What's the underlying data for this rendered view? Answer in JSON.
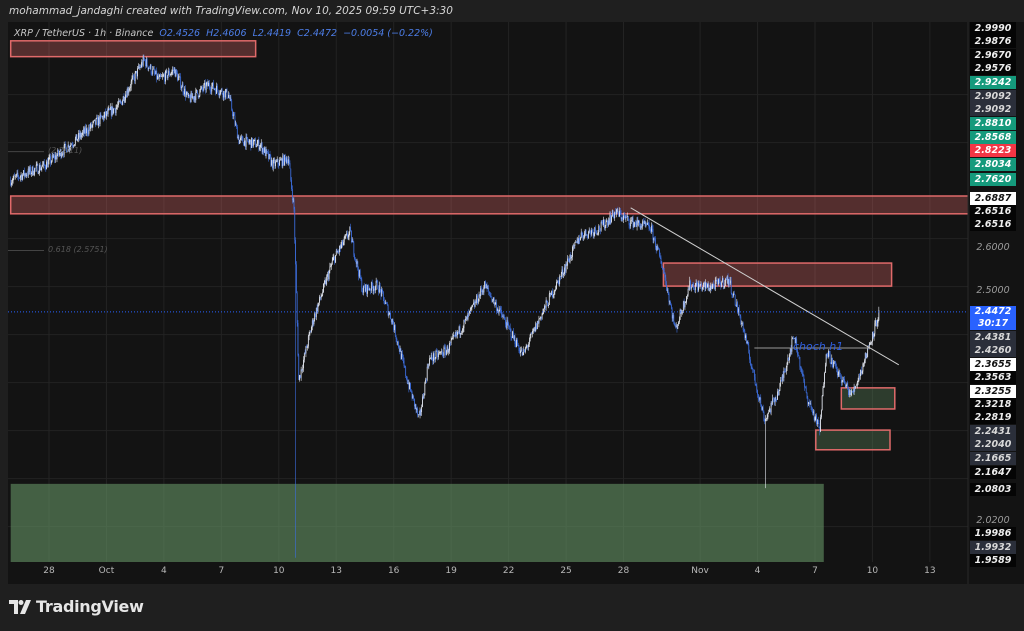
{
  "credit": "mohammad_jandaghi created with TradingView.com, Nov 10, 2025 09:59 UTC+3:30",
  "legend": {
    "symbol": "XRP / TetherUS · 1h · Binance",
    "open": "O2.4526",
    "high": "H2.4606",
    "low": "L2.4419",
    "close": "C2.4472",
    "change": "−0.0054 (−0.22%)"
  },
  "logo": {
    "text": "TradingView"
  },
  "colors": {
    "up": "#e8ecf5",
    "down": "#3d6fe0",
    "supply_zone": "#e06a6a",
    "demand_zone": "#5f8a5f",
    "grid": "#232323",
    "trendline": "#d0d0d0"
  },
  "chart_data": {
    "type": "candlestick",
    "symbol": "XRP / TetherUS",
    "interval": "1h",
    "grid": true,
    "price_axis": "right",
    "x_ticks": [
      {
        "date": "2025-09-28",
        "label": "28"
      },
      {
        "date": "2025-10-01",
        "label": "Oct"
      },
      {
        "date": "2025-10-04",
        "label": "4"
      },
      {
        "date": "2025-10-07",
        "label": "7"
      },
      {
        "date": "2025-10-10",
        "label": "10"
      },
      {
        "date": "2025-10-13",
        "label": "13"
      },
      {
        "date": "2025-10-16",
        "label": "16"
      },
      {
        "date": "2025-10-19",
        "label": "19"
      },
      {
        "date": "2025-10-22",
        "label": "22"
      },
      {
        "date": "2025-10-25",
        "label": "25"
      },
      {
        "date": "2025-10-28",
        "label": "28"
      },
      {
        "date": "2025-11-01",
        "label": "Nov"
      },
      {
        "date": "2025-11-04",
        "label": "4"
      },
      {
        "date": "2025-11-07",
        "label": "7"
      },
      {
        "date": "2025-11-10",
        "label": "10"
      },
      {
        "date": "2025-11-13",
        "label": "13"
      }
    ],
    "price_path": [
      [
        "2025-09-26T00:00",
        2.722
      ],
      [
        "2025-09-27T19:00",
        2.753
      ],
      [
        "2025-09-29T02:00",
        2.795
      ],
      [
        "2025-09-30T15:00",
        2.847
      ],
      [
        "2025-10-01T16:00",
        2.878
      ],
      [
        "2025-10-02T23:00",
        2.972
      ],
      [
        "2025-10-03T18:00",
        2.93
      ],
      [
        "2025-10-04T13:00",
        2.951
      ],
      [
        "2025-10-05T07:00",
        2.889
      ],
      [
        "2025-10-06T08:00",
        2.92
      ],
      [
        "2025-10-07T09:00",
        2.899
      ],
      [
        "2025-10-07T22:00",
        2.805
      ],
      [
        "2025-10-09T01:00",
        2.795
      ],
      [
        "2025-10-09T17:00",
        2.753
      ],
      [
        "2025-10-10T12:00",
        2.768
      ],
      [
        "2025-10-10T19:00",
        2.66
      ],
      [
        "2025-10-11T01:00",
        2.305
      ],
      [
        "2025-10-11T19:00",
        2.43
      ],
      [
        "2025-10-12T20:00",
        2.555
      ],
      [
        "2025-10-13T17:00",
        2.614
      ],
      [
        "2025-10-14T09:00",
        2.493
      ],
      [
        "2025-10-15T04:00",
        2.503
      ],
      [
        "2025-10-15T22:00",
        2.43
      ],
      [
        "2025-10-16T17:00",
        2.305
      ],
      [
        "2025-10-17T08:00",
        2.222
      ],
      [
        "2025-10-17T20:00",
        2.347
      ],
      [
        "2025-10-18T19:00",
        2.368
      ],
      [
        "2025-10-19T19:00",
        2.43
      ],
      [
        "2025-10-20T18:00",
        2.503
      ],
      [
        "2025-10-21T15:00",
        2.441
      ],
      [
        "2025-10-22T18:00",
        2.357
      ],
      [
        "2025-10-23T17:00",
        2.441
      ],
      [
        "2025-10-24T18:00",
        2.524
      ],
      [
        "2025-10-25T18:00",
        2.607
      ],
      [
        "2025-10-26T19:00",
        2.622
      ],
      [
        "2025-10-27T14:00",
        2.655
      ],
      [
        "2025-10-28T09:00",
        2.635
      ],
      [
        "2025-10-29T10:00",
        2.622
      ],
      [
        "2025-10-30T02:00",
        2.535
      ],
      [
        "2025-10-30T17:00",
        2.41
      ],
      [
        "2025-10-31T11:00",
        2.503
      ],
      [
        "2025-11-01T12:00",
        2.499
      ],
      [
        "2025-11-02T12:00",
        2.514
      ],
      [
        "2025-11-03T05:00",
        2.42
      ],
      [
        "2025-11-03T19:00",
        2.316
      ],
      [
        "2025-11-04T09:00",
        2.222
      ],
      [
        "2025-11-05T03:00",
        2.285
      ],
      [
        "2025-11-05T22:00",
        2.399
      ],
      [
        "2025-11-06T13:00",
        2.274
      ],
      [
        "2025-11-07T06:00",
        2.201
      ],
      [
        "2025-11-07T14:00",
        2.368
      ],
      [
        "2025-11-08T06:00",
        2.316
      ],
      [
        "2025-11-08T22:00",
        2.274
      ],
      [
        "2025-11-09T10:00",
        2.326
      ],
      [
        "2025-11-10T09:00",
        2.4472
      ]
    ],
    "notable_lows": [
      [
        "2025-10-10T21:00",
        1.935
      ],
      [
        "2025-11-04T10:00",
        2.08
      ]
    ],
    "last_price": 2.4472,
    "countdown": "30:17",
    "zones": [
      {
        "kind": "supply",
        "from": "2025-09-26T00:00",
        "to": "2025-10-08T19:00",
        "top": 3.012,
        "bottom": 2.979
      },
      {
        "kind": "supply",
        "from": "2025-09-26T00:00",
        "to": "2025-11-20T00:00",
        "top": 2.6887,
        "bottom": 2.6516
      },
      {
        "kind": "supply",
        "from": "2025-10-30T02:00",
        "to": "2025-11-11T00:00",
        "top": 2.549,
        "bottom": 2.501
      },
      {
        "kind": "demand-outlined",
        "from": "2025-11-08T09:00",
        "to": "2025-11-11T04:00",
        "top": 2.289,
        "bottom": 2.245
      },
      {
        "kind": "demand-outlined",
        "from": "2025-11-07T01:00",
        "to": "2025-11-10T22:00",
        "top": 2.201,
        "bottom": 2.16
      },
      {
        "kind": "demand",
        "from": "2025-09-26T00:00",
        "to": "2025-11-07T11:00",
        "top": 2.089,
        "bottom": 1.9
      }
    ],
    "trendline": {
      "from": [
        "2025-10-28T09:00",
        2.664
      ],
      "to": [
        "2025-11-11T09:00",
        2.337
      ]
    },
    "choch": {
      "label": "choch h1",
      "price": 2.372,
      "from": "2025-11-03T20:00",
      "to": "2025-11-09T20:00"
    },
    "fib_labels": [
      {
        "text": "(2.7811)",
        "price": 2.7811
      },
      {
        "text": "0.618 (2.5751)",
        "price": 2.5751
      }
    ],
    "price_tags": [
      {
        "v": "2.9990",
        "s": "black"
      },
      {
        "v": "2.9876",
        "s": "black"
      },
      {
        "v": "2.9670",
        "s": "black"
      },
      {
        "v": "2.9576",
        "s": "black"
      },
      {
        "v": "2.9242",
        "s": "green"
      },
      {
        "v": "2.9092",
        "s": "grey"
      },
      {
        "v": "2.9092",
        "s": "grey"
      },
      {
        "v": "2.8810",
        "s": "green"
      },
      {
        "v": "2.8568",
        "s": "green"
      },
      {
        "v": "2.8223",
        "s": "red"
      },
      {
        "v": "2.8034",
        "s": "green"
      },
      {
        "v": "2.7620",
        "s": "green"
      },
      {
        "v": "2.6887",
        "s": "white"
      },
      {
        "v": "2.6516",
        "s": "black"
      },
      {
        "v": "2.6516",
        "s": "black"
      },
      {
        "v": "2.6000",
        "s": "plain"
      },
      {
        "v": "2.5000",
        "s": "plain"
      },
      {
        "v": "2.4472",
        "s": "blue",
        "sub": "30:17"
      },
      {
        "v": "2.4381",
        "s": "grey"
      },
      {
        "v": "2.4260",
        "s": "grey"
      },
      {
        "v": "2.3655",
        "s": "white"
      },
      {
        "v": "2.3563",
        "s": "black"
      },
      {
        "v": "2.3255",
        "s": "white"
      },
      {
        "v": "2.3218",
        "s": "black"
      },
      {
        "v": "2.2819",
        "s": "black"
      },
      {
        "v": "2.2431",
        "s": "grey"
      },
      {
        "v": "2.2040",
        "s": "grey"
      },
      {
        "v": "2.1665",
        "s": "grey"
      },
      {
        "v": "2.1647",
        "s": "black"
      },
      {
        "v": "2.0803",
        "s": "black"
      },
      {
        "v": "2.0200",
        "s": "plain"
      },
      {
        "v": "1.9986",
        "s": "black"
      },
      {
        "v": "1.9932",
        "s": "grey"
      },
      {
        "v": "1.9589",
        "s": "black"
      }
    ]
  }
}
